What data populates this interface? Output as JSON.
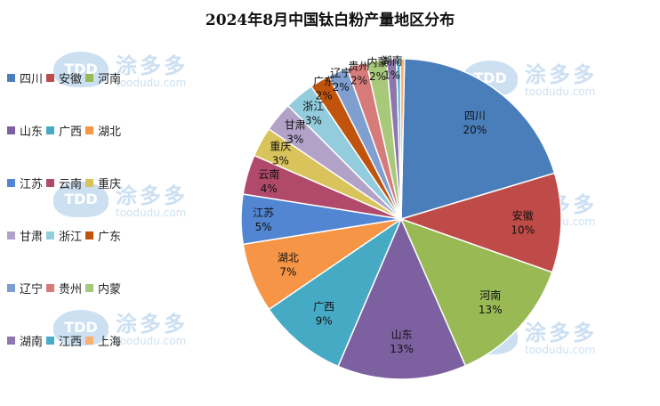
{
  "chart_data": {
    "type": "pie",
    "title": "2024年8月中国钛白粉产量地区分布",
    "slices": [
      {
        "label": "四川",
        "value": 20,
        "display": "20%",
        "color": "#4a7ebb"
      },
      {
        "label": "安徽",
        "value": 10,
        "display": "10%",
        "color": "#be4b48"
      },
      {
        "label": "河南",
        "value": 13,
        "display": "13%",
        "color": "#98b954"
      },
      {
        "label": "山东",
        "value": 13,
        "display": "13%",
        "color": "#7d60a0"
      },
      {
        "label": "广西",
        "value": 9,
        "display": "9%",
        "color": "#46aac5"
      },
      {
        "label": "湖北",
        "value": 7,
        "display": "7%",
        "color": "#f69546"
      },
      {
        "label": "江苏",
        "value": 5,
        "display": "5%",
        "color": "#5286d2"
      },
      {
        "label": "云南",
        "value": 4,
        "display": "4%",
        "color": "#b0496a"
      },
      {
        "label": "重庆",
        "value": 3,
        "display": "3%",
        "color": "#d9c45b"
      },
      {
        "label": "甘肃",
        "value": 3,
        "display": "3%",
        "color": "#b3a2c8"
      },
      {
        "label": "浙江",
        "value": 3,
        "display": "3%",
        "color": "#93cddd"
      },
      {
        "label": "广东",
        "value": 2,
        "display": "2%",
        "color": "#c0540c"
      },
      {
        "label": "辽宁",
        "value": 2,
        "display": "2%",
        "color": "#7f9fd0"
      },
      {
        "label": "贵州",
        "value": 2,
        "display": "2%",
        "color": "#d77b7a"
      },
      {
        "label": "内蒙",
        "value": 2,
        "display": "2%",
        "color": "#a9c97a"
      },
      {
        "label": "湖南",
        "value": 1,
        "display": "1%",
        "color": "#8e77ac"
      },
      {
        "label": "江西",
        "value": 0.4,
        "display": "",
        "color": "#4bacc6"
      },
      {
        "label": "上海",
        "value": 0.4,
        "display": "",
        "color": "#f9b172"
      }
    ],
    "legend_position": "left"
  },
  "watermark": {
    "brand_cn": "涂多多",
    "logo_text": "TDD",
    "url": "toodudu.com"
  }
}
